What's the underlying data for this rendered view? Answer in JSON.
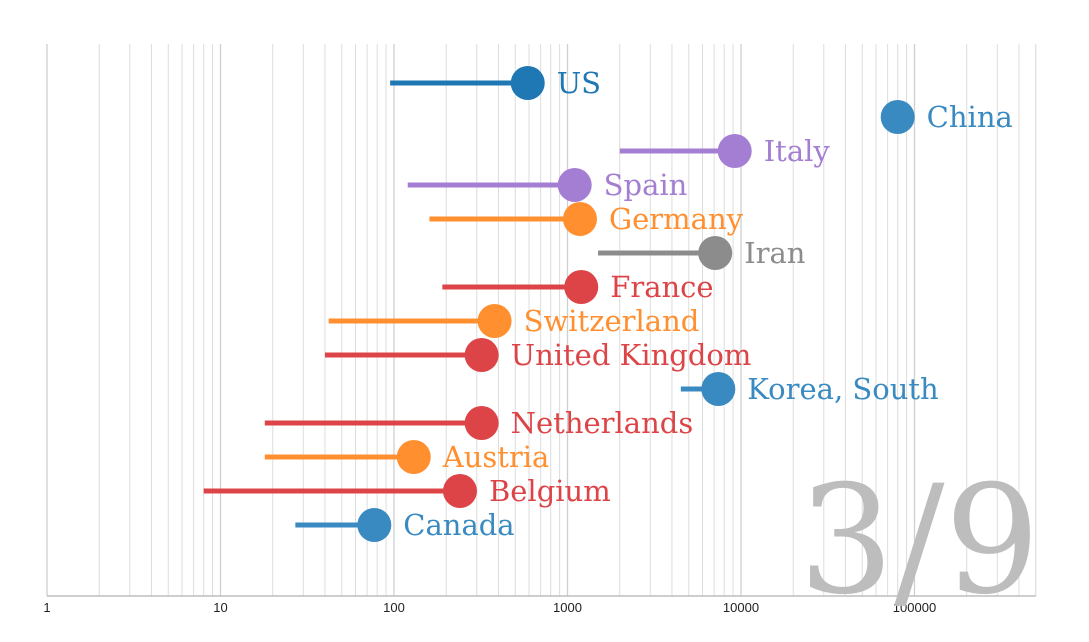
{
  "chart_data": {
    "type": "scatter",
    "xscale": "log",
    "xlim": [
      1,
      500000
    ],
    "grid": true,
    "x_ticks": [
      {
        "value": 1,
        "label": "1"
      },
      {
        "value": 10,
        "label": "10"
      },
      {
        "value": 100,
        "label": "100"
      },
      {
        "value": 1000,
        "label": "1000"
      },
      {
        "value": 10000,
        "label": "10000"
      },
      {
        "value": 100000,
        "label": "100000"
      }
    ],
    "annotation": "3/9",
    "series": [
      {
        "name": "US",
        "start": 95,
        "value": 590,
        "color": "#1f77b4"
      },
      {
        "name": "China",
        "start": null,
        "value": 80000,
        "color": "#3a8ac2"
      },
      {
        "name": "Italy",
        "start": 2000,
        "value": 9200,
        "color": "#a47ed2"
      },
      {
        "name": "Spain",
        "start": 120,
        "value": 1100,
        "color": "#a47ed2"
      },
      {
        "name": "Germany",
        "start": 160,
        "value": 1180,
        "color": "#ff8f2f"
      },
      {
        "name": "Iran",
        "start": 1500,
        "value": 7100,
        "color": "#8c8c8c"
      },
      {
        "name": "France",
        "start": 190,
        "value": 1200,
        "color": "#dd4447"
      },
      {
        "name": "Switzerland",
        "start": 42,
        "value": 380,
        "color": "#ff8f2f"
      },
      {
        "name": "United Kingdom",
        "start": 40,
        "value": 320,
        "color": "#dd4447"
      },
      {
        "name": "Korea, South",
        "start": 4500,
        "value": 7400,
        "color": "#3a8ac2"
      },
      {
        "name": "Netherlands",
        "start": 18,
        "value": 320,
        "color": "#dd4447"
      },
      {
        "name": "Austria",
        "start": 18,
        "value": 130,
        "color": "#ff8f2f"
      },
      {
        "name": "Belgium",
        "start": 8,
        "value": 240,
        "color": "#dd4447"
      },
      {
        "name": "Canada",
        "start": 27,
        "value": 77,
        "color": "#3a8ac2"
      }
    ]
  }
}
